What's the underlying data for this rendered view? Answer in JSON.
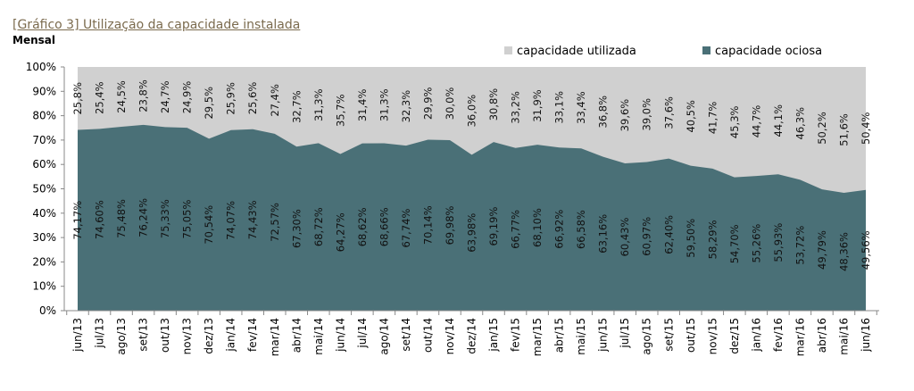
{
  "title": "[Gráfico 3] Utilização da capacidade instalada",
  "subtitle": "Mensal",
  "chart_data": {
    "type": "area",
    "stacked": true,
    "categories": [
      "jun/13",
      "jul/13",
      "ago/13",
      "set/13",
      "out/13",
      "nov/13",
      "dez/13",
      "jan/14",
      "fev/14",
      "mar/14",
      "abr/14",
      "mai/14",
      "jun/14",
      "jul/14",
      "ago/14",
      "set/14",
      "out/14",
      "nov/14",
      "dez/14",
      "jan/15",
      "fev/15",
      "mar/15",
      "abr/15",
      "mai/15",
      "jun/15",
      "jul/15",
      "ago/15",
      "set/15",
      "out/15",
      "nov/15",
      "dez/15",
      "jan/16",
      "fev/16",
      "mar/16",
      "abr/16",
      "mai/16",
      "jun/16"
    ],
    "series": [
      {
        "name": "capacidade ociosa",
        "color": "#4a7077",
        "values": [
          74.17,
          74.6,
          75.48,
          76.24,
          75.33,
          75.05,
          70.54,
          74.07,
          74.43,
          72.57,
          67.3,
          68.72,
          64.27,
          68.62,
          68.66,
          67.74,
          70.14,
          69.98,
          63.98,
          69.19,
          66.77,
          68.1,
          66.92,
          66.58,
          63.16,
          60.43,
          60.97,
          62.4,
          59.5,
          58.29,
          54.7,
          55.26,
          55.93,
          53.72,
          49.79,
          48.36,
          49.56
        ],
        "labels": [
          "74,17%",
          "74,60%",
          "75,48%",
          "76,24%",
          "75,33%",
          "75,05%",
          "70,54%",
          "74,07%",
          "74,43%",
          "72,57%",
          "67,30%",
          "68,72%",
          "64,27%",
          "68,62%",
          "68,66%",
          "67,74%",
          "70,14%",
          "69,98%",
          "63,98%",
          "69,19%",
          "66,77%",
          "68,10%",
          "66,92%",
          "66,58%",
          "63,16%",
          "60,43%",
          "60,97%",
          "62,40%",
          "59,50%",
          "58,29%",
          "54,70%",
          "55,26%",
          "55,93%",
          "53,72%",
          "49,79%",
          "48,36%",
          "49,56%"
        ]
      },
      {
        "name": "capacidade utilizada",
        "color": "#d0d0d0",
        "values": [
          25.8,
          25.4,
          24.5,
          23.8,
          24.7,
          24.9,
          29.5,
          25.9,
          25.6,
          27.4,
          32.7,
          31.3,
          35.7,
          31.4,
          31.3,
          32.3,
          29.9,
          30.0,
          36.0,
          30.8,
          33.2,
          31.9,
          33.1,
          33.4,
          36.8,
          39.6,
          39.0,
          37.6,
          40.5,
          41.7,
          45.3,
          44.7,
          44.1,
          46.3,
          50.2,
          51.6,
          50.4
        ],
        "labels": [
          "25,8%",
          "25,4%",
          "24,5%",
          "23,8%",
          "24,7%",
          "24,9%",
          "29,5%",
          "25,9%",
          "25,6%",
          "27,4%",
          "32,7%",
          "31,3%",
          "35,7%",
          "31,4%",
          "31,3%",
          "32,3%",
          "29,9%",
          "30,0%",
          "36,0%",
          "30,8%",
          "33,2%",
          "31,9%",
          "33,1%",
          "33,4%",
          "36,8%",
          "39,6%",
          "39,0%",
          "37,6%",
          "40,5%",
          "41,7%",
          "45,3%",
          "44,7%",
          "44,1%",
          "46,3%",
          "50,2%",
          "51,6%",
          "50,4%"
        ]
      }
    ],
    "ylim": [
      0,
      100
    ],
    "yticks": [
      "0%",
      "10%",
      "20%",
      "30%",
      "40%",
      "50%",
      "60%",
      "70%",
      "80%",
      "90%",
      "100%"
    ],
    "legend_position": "top-right",
    "legend": [
      "capacidade utilizada",
      "capacidade ociosa"
    ],
    "grid": false
  }
}
